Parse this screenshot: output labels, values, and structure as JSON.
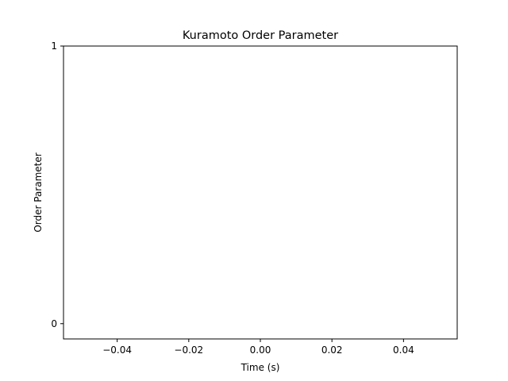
{
  "chart_data": {
    "type": "line",
    "title": "Kuramoto Order Parameter",
    "xlabel": "Time (s)",
    "ylabel": "Order Parameter",
    "xlim": [
      -0.055,
      0.055
    ],
    "ylim": [
      -0.055,
      1.0
    ],
    "x_ticks": [
      -0.04,
      -0.02,
      0.0,
      0.02,
      0.04
    ],
    "x_tick_labels": [
      "−0.04",
      "−0.02",
      "0.00",
      "0.02",
      "0.04"
    ],
    "y_ticks": [
      0,
      1
    ],
    "y_tick_labels": [
      "0",
      "1"
    ],
    "series": [
      {
        "x": [],
        "y": []
      }
    ],
    "grid": false,
    "colors": {
      "axes": "#000000",
      "background": "#ffffff",
      "line": "#1f77b4"
    }
  }
}
